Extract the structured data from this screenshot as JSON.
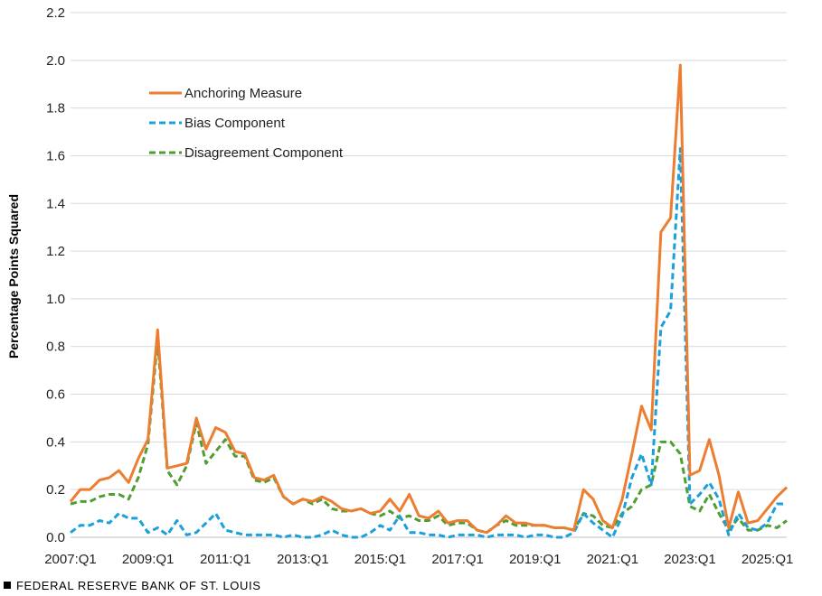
{
  "chart_data": {
    "type": "line",
    "ylabel": "Percentage Points Squared",
    "xlabel": "",
    "ylim": [
      0,
      2.2
    ],
    "yticks": [
      "0.0",
      "0.2",
      "0.4",
      "0.6",
      "0.8",
      "1.0",
      "1.2",
      "1.4",
      "1.6",
      "1.8",
      "2.0",
      "2.2"
    ],
    "xticks": [
      "2007:Q1",
      "2009:Q1",
      "2011:Q1",
      "2013:Q1",
      "2015:Q1",
      "2017:Q1",
      "2019:Q1",
      "2021:Q1",
      "2023:Q1",
      "2025:Q1"
    ],
    "grid": "horizontal-only",
    "legend_position": "upper-left",
    "start_period": "2007:Q1",
    "period": "quarterly",
    "series": [
      {
        "name": "Anchoring Measure",
        "color": "#ED7D31",
        "style": "solid",
        "values": [
          0.15,
          0.2,
          0.2,
          0.24,
          0.25,
          0.28,
          0.23,
          0.33,
          0.41,
          0.87,
          0.29,
          0.3,
          0.31,
          0.5,
          0.37,
          0.46,
          0.44,
          0.36,
          0.35,
          0.25,
          0.24,
          0.26,
          0.17,
          0.14,
          0.16,
          0.15,
          0.17,
          0.15,
          0.12,
          0.11,
          0.12,
          0.1,
          0.11,
          0.16,
          0.11,
          0.18,
          0.09,
          0.08,
          0.11,
          0.06,
          0.07,
          0.07,
          0.03,
          0.02,
          0.05,
          0.09,
          0.06,
          0.06,
          0.05,
          0.05,
          0.04,
          0.04,
          0.03,
          0.2,
          0.16,
          0.07,
          0.04,
          0.16,
          0.35,
          0.55,
          0.45,
          1.28,
          1.34,
          1.98,
          0.26,
          0.28,
          0.41,
          0.26,
          0.04,
          0.19,
          0.06,
          0.07,
          0.12,
          0.17,
          0.21
        ]
      },
      {
        "name": "Bias Component",
        "color": "#1AA0DB",
        "style": "dashed",
        "values": [
          0.02,
          0.05,
          0.05,
          0.07,
          0.06,
          0.1,
          0.08,
          0.08,
          0.02,
          0.04,
          0.01,
          0.07,
          0.01,
          0.02,
          0.06,
          0.1,
          0.03,
          0.02,
          0.01,
          0.01,
          0.01,
          0.01,
          0.0,
          0.01,
          0.0,
          0.0,
          0.01,
          0.03,
          0.01,
          0.0,
          0.0,
          0.02,
          0.05,
          0.03,
          0.09,
          0.02,
          0.02,
          0.01,
          0.01,
          0.0,
          0.01,
          0.01,
          0.01,
          0.0,
          0.01,
          0.01,
          0.01,
          0.0,
          0.01,
          0.01,
          0.0,
          0.0,
          0.02,
          0.1,
          0.06,
          0.03,
          0.0,
          0.09,
          0.25,
          0.35,
          0.22,
          0.88,
          0.95,
          1.63,
          0.14,
          0.18,
          0.23,
          0.16,
          0.01,
          0.1,
          0.04,
          0.03,
          0.06,
          0.14,
          0.14
        ]
      },
      {
        "name": "Disagreement Component",
        "color": "#4E9F2F",
        "style": "dashed",
        "values": [
          0.14,
          0.15,
          0.15,
          0.17,
          0.18,
          0.18,
          0.16,
          0.25,
          0.39,
          0.83,
          0.28,
          0.22,
          0.3,
          0.48,
          0.31,
          0.36,
          0.41,
          0.34,
          0.34,
          0.24,
          0.23,
          0.25,
          0.17,
          0.14,
          0.16,
          0.14,
          0.16,
          0.12,
          0.11,
          0.11,
          0.12,
          0.1,
          0.09,
          0.11,
          0.08,
          0.09,
          0.07,
          0.07,
          0.09,
          0.05,
          0.06,
          0.06,
          0.03,
          0.02,
          0.05,
          0.07,
          0.05,
          0.05,
          0.05,
          0.05,
          0.04,
          0.04,
          0.03,
          0.1,
          0.09,
          0.05,
          0.04,
          0.1,
          0.13,
          0.2,
          0.22,
          0.4,
          0.4,
          0.35,
          0.13,
          0.11,
          0.18,
          0.1,
          0.03,
          0.08,
          0.03,
          0.03,
          0.05,
          0.04,
          0.07
        ]
      }
    ]
  },
  "footer": {
    "source_label": "FEDERAL RESERVE BANK OF ST. LOUIS"
  }
}
